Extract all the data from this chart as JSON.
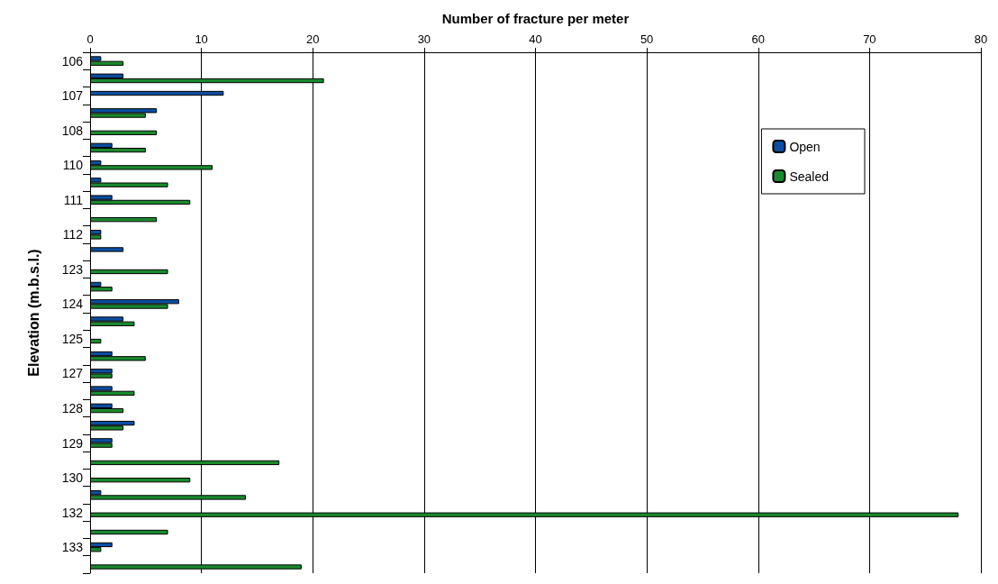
{
  "chart_data": {
    "type": "bar",
    "orientation": "horizontal",
    "xlabel": "Number of fracture per meter",
    "ylabel": "Elevation (m.b.s.l.)",
    "categories": [
      "106",
      null,
      "107",
      null,
      "108",
      null,
      "110",
      null,
      "111",
      null,
      "112",
      null,
      "123",
      null,
      "124",
      null,
      "125",
      null,
      "127",
      null,
      "128",
      null,
      "129",
      null,
      "130",
      null,
      "132",
      null,
      "133",
      null
    ],
    "series": [
      {
        "name": "Open",
        "color": "#0b4ea2",
        "values": [
          1,
          3,
          12,
          6,
          null,
          2,
          1,
          1,
          2,
          null,
          1,
          3,
          null,
          1,
          8,
          3,
          null,
          2,
          2,
          2,
          2,
          4,
          2,
          null,
          null,
          1,
          null,
          null,
          2,
          null
        ]
      },
      {
        "name": "Sealed",
        "color": "#1a8a2e",
        "values": [
          3,
          21,
          null,
          5,
          6,
          5,
          11,
          7,
          9,
          6,
          1,
          null,
          7,
          2,
          7,
          4,
          1,
          5,
          2,
          4,
          3,
          3,
          2,
          17,
          9,
          14,
          78,
          7,
          1,
          19
        ]
      }
    ],
    "xlim": [
      0,
      80
    ],
    "xticks": [
      0,
      10,
      20,
      30,
      40,
      50,
      60,
      70,
      80
    ],
    "grid": "x",
    "legend": "top right"
  }
}
